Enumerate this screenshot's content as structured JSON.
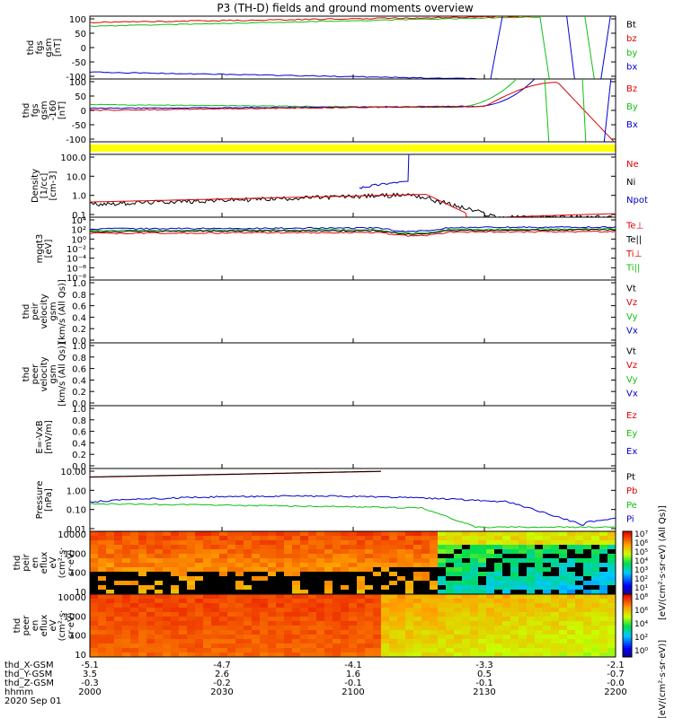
{
  "title": "P3 (TH-D) fields and ground moments overview",
  "colors": {
    "black": "#000000",
    "red": "#e00000",
    "green": "#10c010",
    "blue": "#0000d0",
    "yellow": "#ffff00"
  },
  "chart_data": [
    {
      "id": "fgs_gsm",
      "type": "line",
      "ylabel": [
        "thd",
        "fgs",
        "gsm",
        "[nT]"
      ],
      "ylim": [
        -100,
        100
      ],
      "yticks": [
        "100",
        "50",
        "0",
        "-50",
        "-100"
      ],
      "legend": [
        {
          "name": "Bt",
          "color": "black"
        },
        {
          "name": "bz",
          "color": "red"
        },
        {
          "name": "by",
          "color": "green"
        },
        {
          "name": "bx",
          "color": "blue"
        }
      ]
    },
    {
      "id": "fgs_gsm_minus160",
      "type": "line",
      "ylabel": [
        "thd",
        "fgs",
        "gsm",
        "-160",
        "[nT]"
      ],
      "ylim": [
        -125,
        100
      ],
      "yticks": [
        "100",
        "50",
        "0",
        "-50",
        "-100"
      ],
      "legend": [
        {
          "name": "Bz",
          "color": "red"
        },
        {
          "name": "By",
          "color": "green"
        },
        {
          "name": "Bx",
          "color": "blue"
        }
      ]
    },
    {
      "id": "density",
      "type": "line",
      "ylabel": [
        "Density",
        "[1/cc]",
        "[cm-3]"
      ],
      "yscale": "log",
      "yticks": [
        "100.0",
        "10.0",
        "1.0",
        "0.1"
      ],
      "legend": [
        {
          "name": "Ne",
          "color": "red"
        },
        {
          "name": "Ni",
          "color": "black"
        },
        {
          "name": "Npot",
          "color": "blue"
        }
      ]
    },
    {
      "id": "temperature",
      "type": "line",
      "ylabel": [
        "mgqt3",
        "[eV]"
      ],
      "yscale": "log",
      "yticks": [
        "10⁴",
        "10²",
        "10⁰",
        "10⁻²",
        "10⁻⁴",
        "10⁻⁶",
        "10⁻⁸"
      ],
      "legend": [
        {
          "name": "Te⊥",
          "color": "red"
        },
        {
          "name": "Te||",
          "color": "black"
        },
        {
          "name": "Ti⊥",
          "color": "red"
        },
        {
          "name": "Ti||",
          "color": "green"
        }
      ]
    },
    {
      "id": "peir_velocity",
      "type": "line",
      "ylabel": [
        "thd",
        "peir",
        "velocity",
        "gsm",
        "[km/s (All Qs)]"
      ],
      "ylim": [
        0,
        1
      ],
      "yticks": [
        "1.0",
        "0.8",
        "0.6",
        "0.4",
        "0.2",
        "0.0"
      ],
      "legend": [
        {
          "name": "Vt",
          "color": "black"
        },
        {
          "name": "Vz",
          "color": "red"
        },
        {
          "name": "Vy",
          "color": "green"
        },
        {
          "name": "Vx",
          "color": "blue"
        }
      ]
    },
    {
      "id": "peer_velocity",
      "type": "line",
      "ylabel": [
        "thd",
        "peer",
        "velocity",
        "gsm",
        "[km/s (All Qs)]"
      ],
      "ylim": [
        0,
        1
      ],
      "yticks": [
        "1.0",
        "0.8",
        "0.6",
        "0.4",
        "0.2",
        "0.0"
      ],
      "legend": [
        {
          "name": "Vt",
          "color": "black"
        },
        {
          "name": "Vz",
          "color": "red"
        },
        {
          "name": "Vy",
          "color": "green"
        },
        {
          "name": "Vx",
          "color": "blue"
        }
      ]
    },
    {
      "id": "efield",
      "type": "line",
      "ylabel": [
        "E=-VxB",
        "[mV/m]"
      ],
      "ylim": [
        0,
        1
      ],
      "yticks": [
        "1.0",
        "0.8",
        "0.6",
        "0.4",
        "0.2",
        "0.0"
      ],
      "legend": [
        {
          "name": "Ez",
          "color": "red"
        },
        {
          "name": "Ey",
          "color": "green"
        },
        {
          "name": "Ex",
          "color": "blue"
        }
      ]
    },
    {
      "id": "pressure",
      "type": "line",
      "ylabel": [
        "Pressure",
        "[nPa]"
      ],
      "yscale": "log",
      "yticks": [
        "10.00",
        "1.00",
        "0.10",
        "0.01"
      ],
      "legend": [
        {
          "name": "Pt",
          "color": "black"
        },
        {
          "name": "Pb",
          "color": "red"
        },
        {
          "name": "Pe",
          "color": "green"
        },
        {
          "name": "Pi",
          "color": "blue"
        }
      ]
    },
    {
      "id": "peir_spec",
      "type": "heatmap",
      "ylabel": [
        "thd",
        "peir",
        "en",
        "eflux",
        "eV",
        "(cm²·s·",
        "sr·eV)"
      ],
      "yscale": "log",
      "yticks": [
        "10000",
        "1000",
        "100",
        "10"
      ],
      "colorbar": {
        "ticks": [
          "10⁷",
          "10⁶",
          "10⁵",
          "10⁴",
          "10³",
          "10²",
          "10¹"
        ],
        "label": "[eV/(cm²·s·sr·eV) (All Qs)]"
      }
    },
    {
      "id": "peer_spec",
      "type": "heatmap",
      "ylabel": [
        "thd",
        "peer",
        "en",
        "eflux",
        "eV",
        "(cm²·s·",
        "sr·eV)"
      ],
      "yscale": "log",
      "yticks": [
        "10000",
        "1000",
        "100",
        "10"
      ],
      "colorbar": {
        "ticks": [
          "10⁸",
          "10⁶",
          "10⁴",
          "10²",
          "10⁰"
        ],
        "label": "[eV/(cm²·s·sr·eV)]"
      }
    }
  ],
  "xaxis": {
    "rows": [
      {
        "label": "thd_X-GSM",
        "values": [
          "-5.1",
          "-4.7",
          "-4.1",
          "-3.3",
          "-2.1"
        ]
      },
      {
        "label": "thd_Y-GSM",
        "values": [
          "3.5",
          "2.6",
          "1.6",
          "0.5",
          "-0.7"
        ]
      },
      {
        "label": "thd_Z-GSM",
        "values": [
          "-0.3",
          "-0.2",
          "-0.1",
          "-0.1",
          "-0.0"
        ]
      },
      {
        "label": "hhmm",
        "values": [
          "2000",
          "2030",
          "2100",
          "2130",
          "2200"
        ]
      }
    ],
    "date": "2020 Sep 01"
  }
}
